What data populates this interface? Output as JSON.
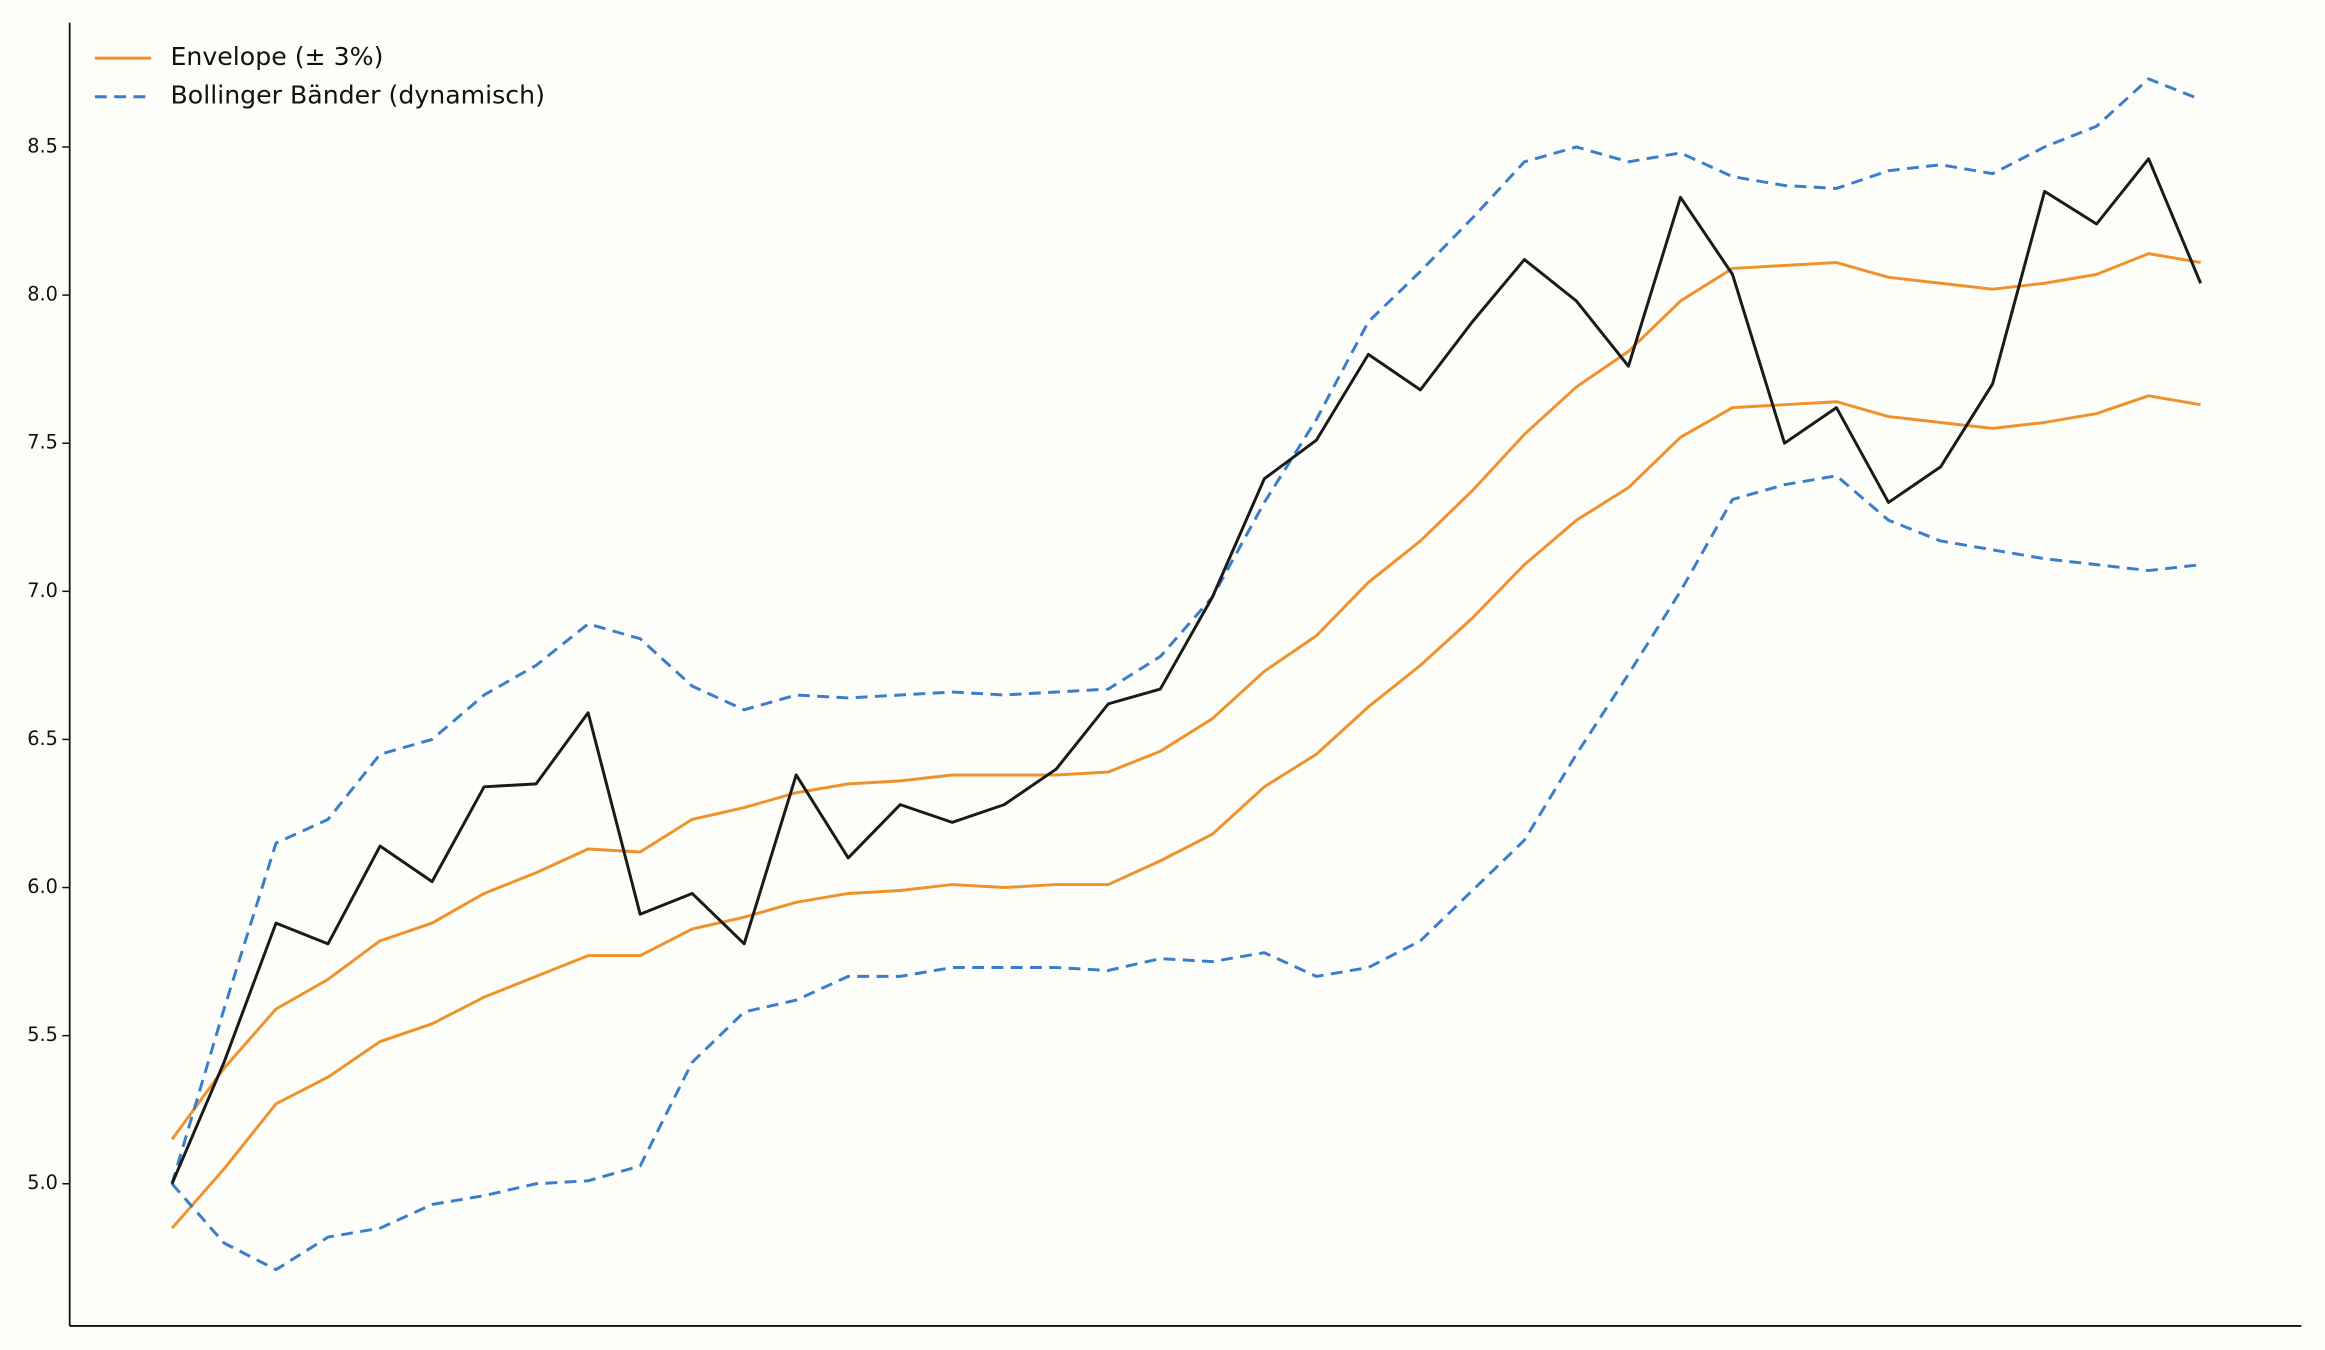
{
  "chart_data": {
    "type": "line",
    "ylim": [
      4.52,
      8.92
    ],
    "yticks": [
      {
        "value": 5,
        "label": "5.0"
      },
      5.5,
      {
        "value": 6,
        "label": "6.0"
      },
      6.5,
      {
        "value": 7,
        "label": "7.0"
      },
      7.5,
      {
        "value": 8,
        "label": "8.0"
      },
      8.5
    ],
    "grid": false,
    "legend": "upper left",
    "series": [
      {
        "color": "#1a1a1a",
        "dash": false,
        "values": [
          5.0,
          5.41,
          5.88,
          5.81,
          6.14,
          6.02,
          6.34,
          6.35,
          6.59,
          5.91,
          5.98,
          5.81,
          6.38,
          6.1,
          6.28,
          6.22,
          6.28,
          6.4,
          6.62,
          6.67,
          6.98,
          7.38,
          7.51,
          7.8,
          7.68,
          7.91,
          8.12,
          7.98,
          7.76,
          8.33,
          8.07,
          7.5,
          7.62,
          7.3,
          7.42,
          7.7,
          8.35,
          8.24,
          8.46,
          8.04
        ]
      },
      {
        "name": "Envelope (± 3%)",
        "color": "#f0922b",
        "dash": false,
        "values": [
          5.15,
          5.39,
          5.59,
          5.69,
          5.82,
          5.88,
          5.98,
          6.05,
          6.13,
          6.12,
          6.23,
          6.27,
          6.32,
          6.35,
          6.36,
          6.38,
          6.38,
          6.38,
          6.39,
          6.46,
          6.57,
          6.73,
          6.85,
          7.03,
          7.17,
          7.34,
          7.53,
          7.69,
          7.81,
          7.98,
          8.09,
          8.1,
          8.11,
          8.06,
          8.04,
          8.02,
          8.04,
          8.07,
          8.14,
          8.11
        ]
      },
      {
        "color": "#f0922b",
        "dash": false,
        "values": [
          4.85,
          5.05,
          5.27,
          5.36,
          5.48,
          5.54,
          5.63,
          5.7,
          5.77,
          5.77,
          5.86,
          5.9,
          5.95,
          5.98,
          5.99,
          6.01,
          6.0,
          6.01,
          6.01,
          6.09,
          6.18,
          6.34,
          6.45,
          6.61,
          6.75,
          6.91,
          7.09,
          7.24,
          7.35,
          7.52,
          7.62,
          7.63,
          7.64,
          7.59,
          7.57,
          7.55,
          7.57,
          7.6,
          7.66,
          7.63
        ]
      },
      {
        "name": "Bollinger Bänder (dynamisch)",
        "color": "#3a7dc9",
        "dash": true,
        "values": [
          5.0,
          5.59,
          6.15,
          6.23,
          6.45,
          6.5,
          6.65,
          6.75,
          6.89,
          6.84,
          6.68,
          6.6,
          6.65,
          6.64,
          6.65,
          6.66,
          6.65,
          6.66,
          6.67,
          6.78,
          6.98,
          7.3,
          7.58,
          7.91,
          8.08,
          8.26,
          8.45,
          8.5,
          8.45,
          8.48,
          8.4,
          8.37,
          8.36,
          8.42,
          8.44,
          8.41,
          8.5,
          8.57,
          8.73,
          8.66
        ]
      },
      {
        "color": "#3a7dc9",
        "dash": true,
        "values": [
          5.0,
          4.8,
          4.71,
          4.82,
          4.85,
          4.93,
          4.96,
          5.0,
          5.01,
          5.06,
          5.41,
          5.58,
          5.62,
          5.7,
          5.7,
          5.73,
          5.73,
          5.73,
          5.72,
          5.76,
          5.75,
          5.78,
          5.7,
          5.73,
          5.82,
          5.99,
          6.16,
          6.45,
          6.72,
          7.0,
          7.31,
          7.36,
          7.39,
          7.24,
          7.17,
          7.14,
          7.11,
          7.09,
          7.07,
          7.09
        ]
      }
    ]
  }
}
